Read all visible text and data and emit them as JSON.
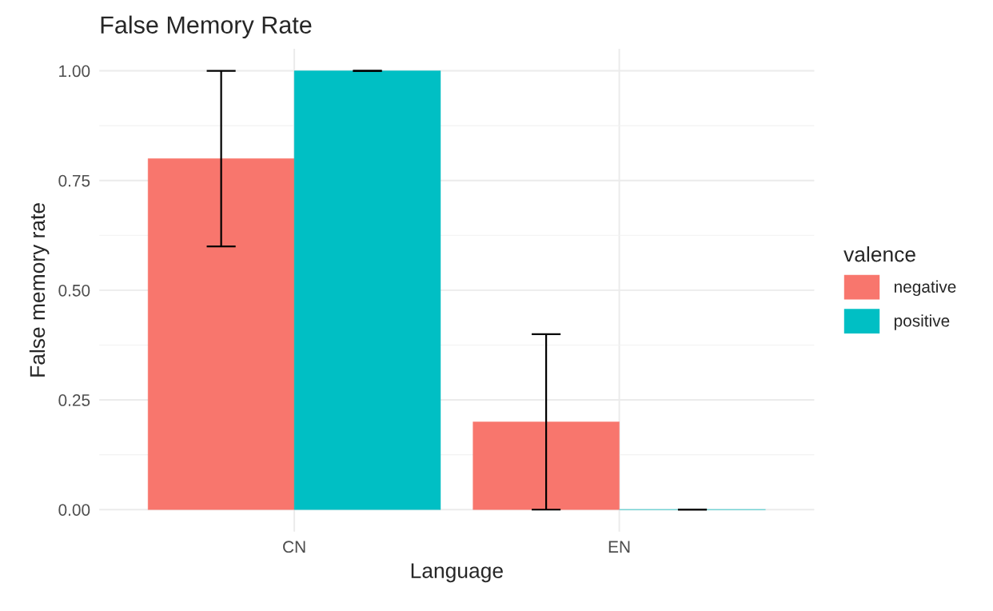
{
  "chart_data": {
    "type": "bar",
    "title": "False Memory Rate",
    "xlabel": "Language",
    "ylabel": "False memory rate",
    "legend_title": "valence",
    "categories": [
      "CN",
      "EN"
    ],
    "series": [
      {
        "name": "negative",
        "color": "#f8766d",
        "values": [
          0.8,
          0.2
        ],
        "errors": [
          [
            0.6,
            1.0
          ],
          [
            0.0,
            0.4
          ]
        ]
      },
      {
        "name": "positive",
        "color": "#00bfc4",
        "values": [
          1.0,
          0.0
        ],
        "errors": [
          [
            1.0,
            1.0
          ],
          [
            0.0,
            0.0
          ]
        ]
      }
    ],
    "ylim": [
      -0.05,
      1.05
    ],
    "yticks": [
      {
        "value": 0,
        "label": "0.00"
      },
      {
        "value": 0.25,
        "label": "0.25"
      },
      {
        "value": 0.5,
        "label": "0.50"
      },
      {
        "value": 0.75,
        "label": "0.75"
      },
      {
        "value": 1,
        "label": "1.00"
      }
    ],
    "grid": true,
    "legend": "right"
  }
}
